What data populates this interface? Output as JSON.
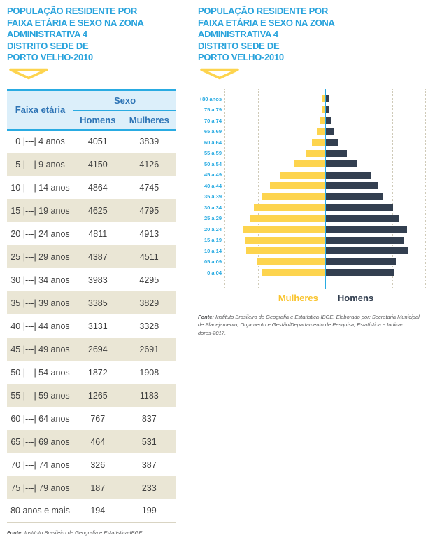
{
  "colors": {
    "title_blue": "#29A3DC",
    "header_text_blue": "#2E74B5",
    "header_bg": "#DCEFFA",
    "line_cyan": "#29ABE2",
    "row_beige": "#EAE6D5",
    "body_text": "#3F3F3F",
    "bar_yellow": "#FDD44E",
    "bar_navy": "#333F50",
    "axis_label_blue": "#29ABE2",
    "legend_yellow": "#F9C42E",
    "source_gray": "#58595B"
  },
  "left_panel": {
    "title_lines": [
      "POPULAÇÃO RESIDENTE POR",
      "FAIXA ETÁRIA E SEXO NA ZONA",
      "ADMINISTRATIVA 4",
      "DISTRITO SEDE DE",
      "PORTO VELHO-2010"
    ],
    "source_bold": "Fonte:",
    "source_text": " Instituto Brasileiro de Geografia e Estatística-IBGE."
  },
  "right_panel": {
    "title_lines": [
      "POPULAÇÃO RESIDENTE POR",
      "FAIXA ETÁRIA E SEXO NA ZONA",
      "ADMINISTRATIVA 4",
      "DISTRITO SEDE DE",
      "PORTO VELHO-2010"
    ],
    "legend": {
      "mulheres": "Mulheres",
      "homens": "Homens"
    },
    "source_bold": "Fonte:",
    "source_line1_rest": " Instituto Brasileiro de Geografia e Estatística-IBGE. Elaborado por: Secretaria Municipal",
    "source_line2": "de Planejamento, Orçamento e Gestão/Departamento de Pesquisa, Estatística e Indica-",
    "source_line3": "dores-2017."
  },
  "table": {
    "header": {
      "faixa_etaria": "Faixa etária",
      "sexo": "Sexo",
      "homens": "Homens",
      "mulheres": "Mulheres"
    },
    "rows": [
      {
        "faixa": "0 |---| 4 anos",
        "homens": "4051",
        "mulheres": "3839"
      },
      {
        "faixa": "5 |---| 9 anos",
        "homens": "4150",
        "mulheres": "4126"
      },
      {
        "faixa": "10 |---| 14 anos",
        "homens": "4864",
        "mulheres": "4745"
      },
      {
        "faixa": "15 |---| 19 anos",
        "homens": "4625",
        "mulheres": "4795"
      },
      {
        "faixa": "20 |---| 24 anos",
        "homens": "4811",
        "mulheres": "4913"
      },
      {
        "faixa": "25 |---| 29 anos",
        "homens": "4387",
        "mulheres": "4511"
      },
      {
        "faixa": "30 |---| 34 anos",
        "homens": "3983",
        "mulheres": "4295"
      },
      {
        "faixa": "35 |---| 39 anos",
        "homens": "3385",
        "mulheres": "3829"
      },
      {
        "faixa": "40 |---| 44 anos",
        "homens": "3131",
        "mulheres": "3328"
      },
      {
        "faixa": "45 |---| 49 anos",
        "homens": "2694",
        "mulheres": "2691"
      },
      {
        "faixa": "50 |---| 54 anos",
        "homens": "1872",
        "mulheres": "1908"
      },
      {
        "faixa": "55 |---| 59 anos",
        "homens": "1265",
        "mulheres": "1183"
      },
      {
        "faixa": "60 |---| 64 anos",
        "homens": "767",
        "mulheres": "837"
      },
      {
        "faixa": "65 |---| 69 anos",
        "homens": "464",
        "mulheres": "531"
      },
      {
        "faixa": "70 |---| 74 anos",
        "homens": "326",
        "mulheres": "387"
      },
      {
        "faixa": "75 |---| 79 anos",
        "homens": "187",
        "mulheres": "233"
      },
      {
        "faixa": "80 anos e mais",
        "homens": "194",
        "mulheres": "199"
      }
    ]
  },
  "chart_data": {
    "type": "bar",
    "subtype": "population-pyramid",
    "title": "POPULAÇÃO RESIDENTE POR FAIXA ETÁRIA E SEXO NA ZONA ADMINISTRATIVA 4 DISTRITO SEDE DE PORTO VELHO-2010",
    "categories_top_to_bottom": [
      "+80 anos",
      "75 a 79",
      "70 a 74",
      "65 a 69",
      "60 a 64",
      "55 a 59",
      "50 a 54",
      "45 a 49",
      "40 a 44",
      "35 a 39",
      "30 a 34",
      "25 a 29",
      "20 a 24",
      "15 a 19",
      "10 a 14",
      "05 a 09",
      "0 a 04"
    ],
    "series": [
      {
        "name": "Mulheres",
        "side": "left",
        "color": "#FDD44E",
        "values": [
          199,
          233,
          387,
          531,
          837,
          1183,
          1908,
          2691,
          3328,
          3829,
          4295,
          4511,
          4913,
          4795,
          4745,
          4126,
          3839
        ]
      },
      {
        "name": "Homens",
        "side": "right",
        "color": "#333F50",
        "values": [
          194,
          187,
          326,
          464,
          767,
          1265,
          1872,
          2694,
          3131,
          3385,
          3983,
          4387,
          4811,
          4625,
          4864,
          4150,
          4051
        ]
      }
    ],
    "xlim_each_side": [
      0,
      6000
    ],
    "gridline_interval": 2000,
    "grid": "dotted-vertical",
    "legend_position": "bottom"
  }
}
